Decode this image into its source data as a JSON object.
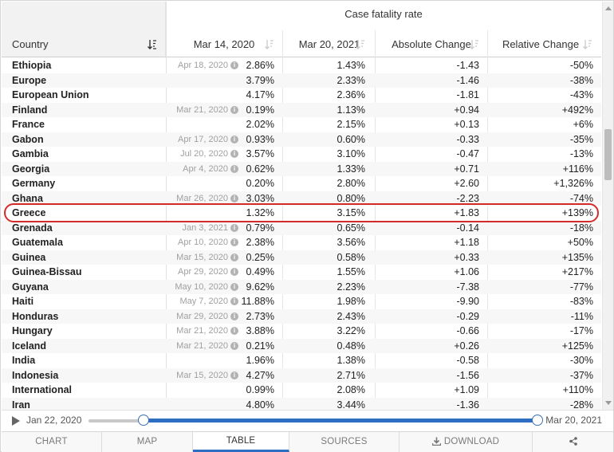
{
  "table": {
    "group_title": "Case fatality rate",
    "columns": {
      "country": "Country",
      "date1": "Mar 14, 2020",
      "date2": "Mar 20, 2021",
      "abs": "Absolute Change",
      "rel": "Relative Change"
    },
    "highlighted_row": "Greece",
    "rows": [
      {
        "country": "Ethiopia",
        "date_note": "Apr 18, 2020",
        "v1": "2.86%",
        "v2": "1.43%",
        "abs": "-1.43",
        "rel": "-50%"
      },
      {
        "country": "Europe",
        "date_note": "",
        "v1": "3.79%",
        "v2": "2.33%",
        "abs": "-1.46",
        "rel": "-38%"
      },
      {
        "country": "European Union",
        "date_note": "",
        "v1": "4.17%",
        "v2": "2.36%",
        "abs": "-1.81",
        "rel": "-43%"
      },
      {
        "country": "Finland",
        "date_note": "Mar 21, 2020",
        "v1": "0.19%",
        "v2": "1.13%",
        "abs": "+0.94",
        "rel": "+492%"
      },
      {
        "country": "France",
        "date_note": "",
        "v1": "2.02%",
        "v2": "2.15%",
        "abs": "+0.13",
        "rel": "+6%"
      },
      {
        "country": "Gabon",
        "date_note": "Apr 17, 2020",
        "v1": "0.93%",
        "v2": "0.60%",
        "abs": "-0.33",
        "rel": "-35%"
      },
      {
        "country": "Gambia",
        "date_note": "Jul 20, 2020",
        "v1": "3.57%",
        "v2": "3.10%",
        "abs": "-0.47",
        "rel": "-13%"
      },
      {
        "country": "Georgia",
        "date_note": "Apr 4, 2020",
        "v1": "0.62%",
        "v2": "1.33%",
        "abs": "+0.71",
        "rel": "+116%"
      },
      {
        "country": "Germany",
        "date_note": "",
        "v1": "0.20%",
        "v2": "2.80%",
        "abs": "+2.60",
        "rel": "+1,326%"
      },
      {
        "country": "Ghana",
        "date_note": "Mar 26, 2020",
        "v1": "3.03%",
        "v2": "0.80%",
        "abs": "-2.23",
        "rel": "-74%"
      },
      {
        "country": "Greece",
        "date_note": "",
        "v1": "1.32%",
        "v2": "3.15%",
        "abs": "+1.83",
        "rel": "+139%"
      },
      {
        "country": "Grenada",
        "date_note": "Jan 3, 2021",
        "v1": "0.79%",
        "v2": "0.65%",
        "abs": "-0.14",
        "rel": "-18%"
      },
      {
        "country": "Guatemala",
        "date_note": "Apr 10, 2020",
        "v1": "2.38%",
        "v2": "3.56%",
        "abs": "+1.18",
        "rel": "+50%"
      },
      {
        "country": "Guinea",
        "date_note": "Mar 15, 2020",
        "v1": "0.25%",
        "v2": "0.58%",
        "abs": "+0.33",
        "rel": "+135%"
      },
      {
        "country": "Guinea-Bissau",
        "date_note": "Apr 29, 2020",
        "v1": "0.49%",
        "v2": "1.55%",
        "abs": "+1.06",
        "rel": "+217%"
      },
      {
        "country": "Guyana",
        "date_note": "May 10, 2020",
        "v1": "9.62%",
        "v2": "2.23%",
        "abs": "-7.38",
        "rel": "-77%"
      },
      {
        "country": "Haiti",
        "date_note": "May 7, 2020",
        "v1": "11.88%",
        "v2": "1.98%",
        "abs": "-9.90",
        "rel": "-83%"
      },
      {
        "country": "Honduras",
        "date_note": "Mar 29, 2020",
        "v1": "2.73%",
        "v2": "2.43%",
        "abs": "-0.29",
        "rel": "-11%"
      },
      {
        "country": "Hungary",
        "date_note": "Mar 21, 2020",
        "v1": "3.88%",
        "v2": "3.22%",
        "abs": "-0.66",
        "rel": "-17%"
      },
      {
        "country": "Iceland",
        "date_note": "Mar 21, 2020",
        "v1": "0.21%",
        "v2": "0.48%",
        "abs": "+0.26",
        "rel": "+125%"
      },
      {
        "country": "India",
        "date_note": "",
        "v1": "1.96%",
        "v2": "1.38%",
        "abs": "-0.58",
        "rel": "-30%"
      },
      {
        "country": "Indonesia",
        "date_note": "Mar 15, 2020",
        "v1": "4.27%",
        "v2": "2.71%",
        "abs": "-1.56",
        "rel": "-37%"
      },
      {
        "country": "International",
        "date_note": "",
        "v1": "0.99%",
        "v2": "2.08%",
        "abs": "+1.09",
        "rel": "+110%"
      },
      {
        "country": "Iran",
        "date_note": "",
        "v1": "4.80%",
        "v2": "3.44%",
        "abs": "-1.36",
        "rel": "-28%"
      }
    ]
  },
  "timeline": {
    "start_label": "Jan 22, 2020",
    "end_label": "Mar 20, 2021",
    "range_start": "Mar 14, 2020",
    "range_end": "Mar 20, 2021"
  },
  "tabs": [
    {
      "label": "CHART",
      "active": false
    },
    {
      "label": "MAP",
      "active": false
    },
    {
      "label": "TABLE",
      "active": true
    },
    {
      "label": "SOURCES",
      "active": false
    },
    {
      "label": "DOWNLOAD",
      "active": false,
      "icon": "download-icon"
    },
    {
      "label": "",
      "active": false,
      "icon": "share-icon"
    }
  ],
  "colors": {
    "accent": "#2d6ec2",
    "highlight": "#d42a2a"
  }
}
